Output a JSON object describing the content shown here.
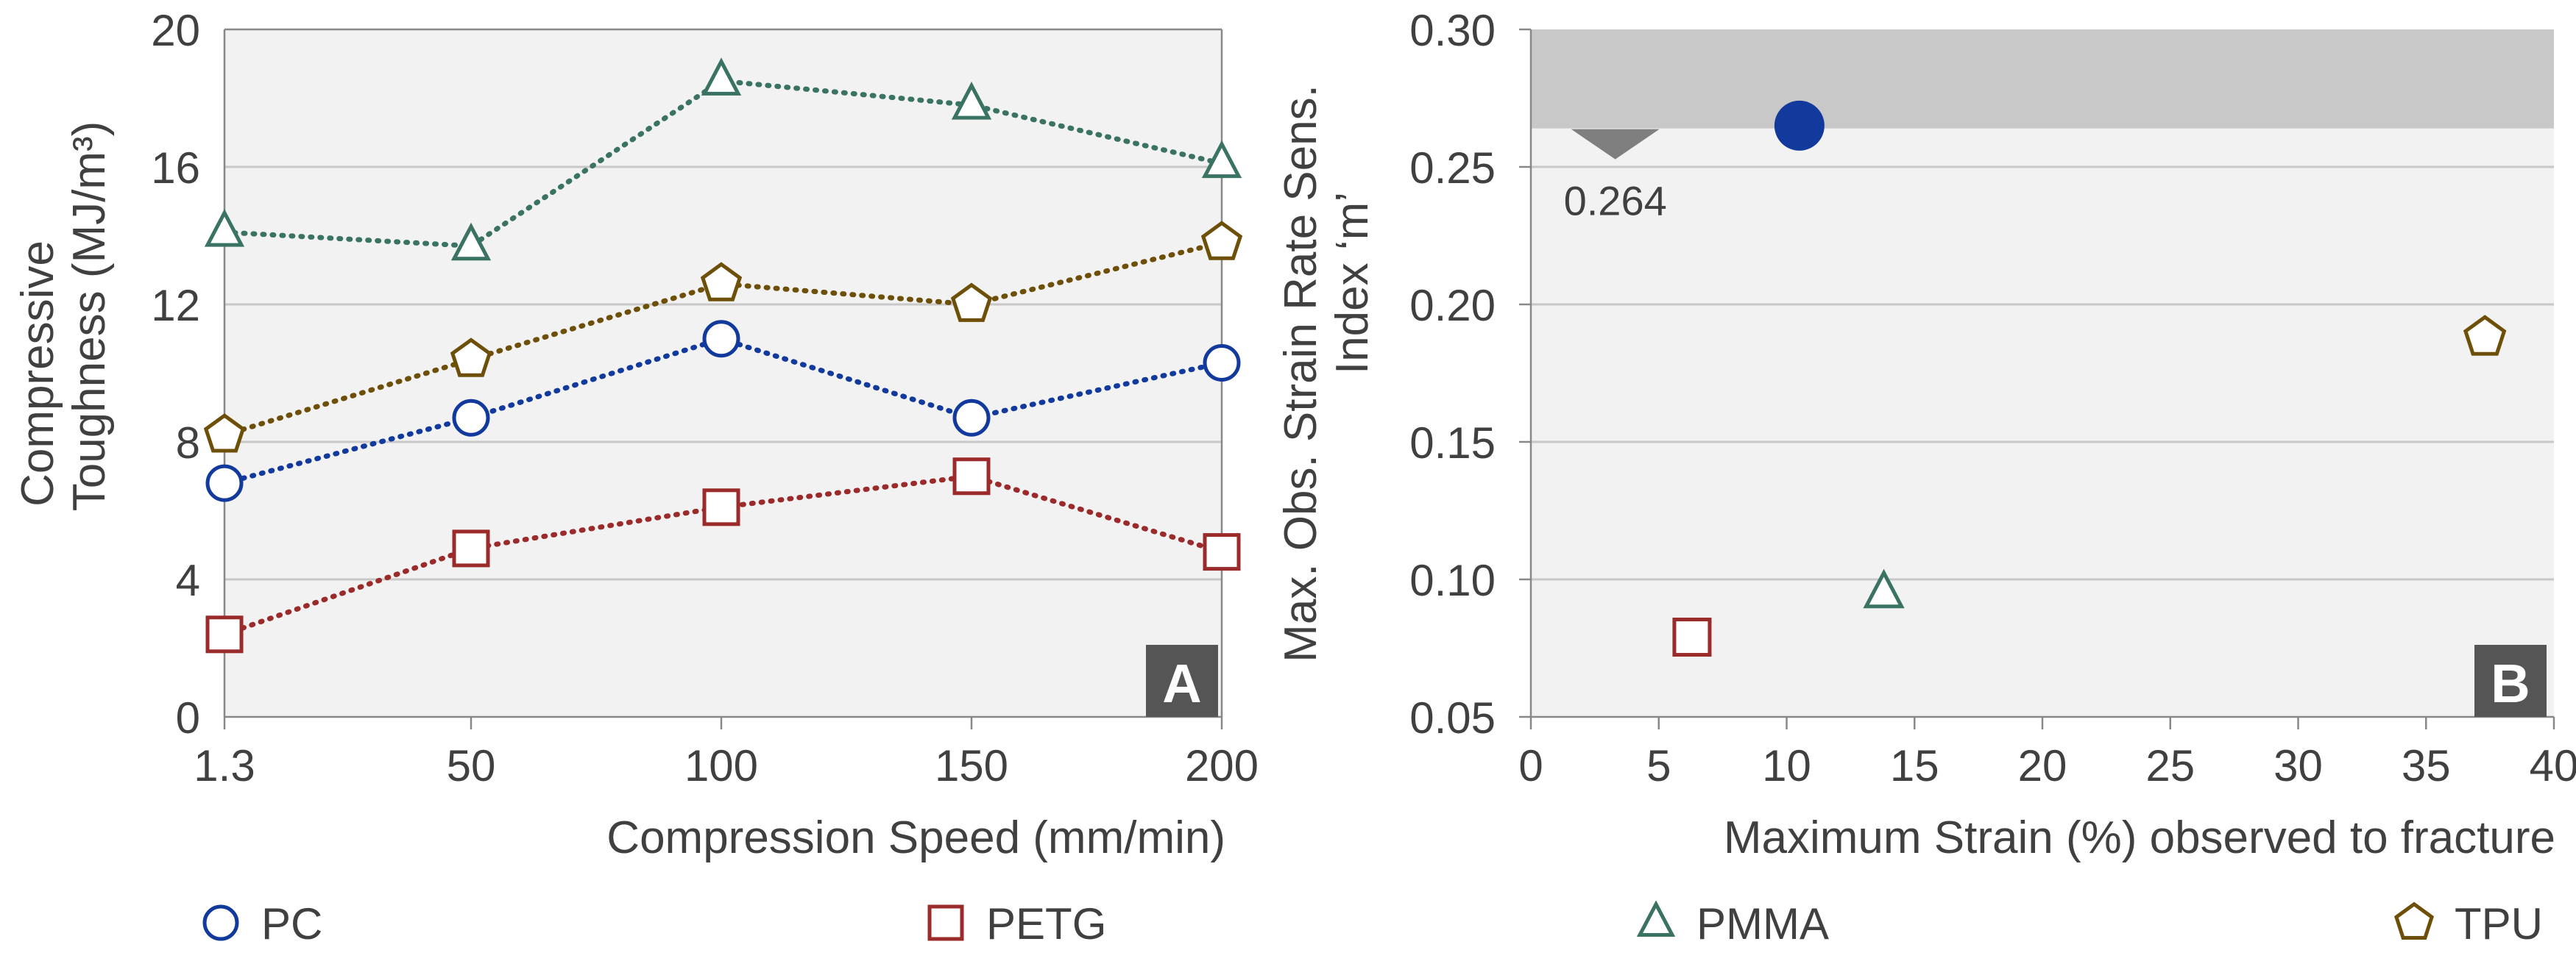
{
  "colors": {
    "PC": "#123a9c",
    "PETG": "#9b2a2a",
    "PMMA": "#3a7263",
    "TPU": "#6d4f08",
    "plot_bg": "#f2f2f2",
    "grid": "#c8c8c8",
    "shade": "#c8c8c8",
    "text": "#404040",
    "badge": "#555555"
  },
  "chart_data": [
    {
      "type": "line",
      "panel_label": "A",
      "xlabel": "Compression Speed (mm/min)",
      "ylabel_line1": "Compressive",
      "ylabel_line2": "Toughness (MJ/m³)",
      "categories": [
        "1.3",
        "50",
        "100",
        "150",
        "200"
      ],
      "yticks": [
        "0",
        "4",
        "8",
        "12",
        "16",
        "20"
      ],
      "ylim": [
        0,
        20
      ],
      "grid": true,
      "series": [
        {
          "name": "PMMA",
          "marker": "triangle",
          "values": [
            14.1,
            13.7,
            18.5,
            17.8,
            16.1
          ]
        },
        {
          "name": "TPU",
          "marker": "pentagon",
          "values": [
            8.2,
            10.4,
            12.6,
            12.0,
            13.8
          ]
        },
        {
          "name": "PC",
          "marker": "circle",
          "values": [
            6.8,
            8.7,
            11.0,
            8.7,
            10.3
          ]
        },
        {
          "name": "PETG",
          "marker": "square",
          "values": [
            2.4,
            4.9,
            6.1,
            7.0,
            4.8
          ]
        }
      ]
    },
    {
      "type": "scatter",
      "panel_label": "B",
      "xlabel": "Maximum Strain (%) observed to fracture",
      "ylabel_line1": "Max. Obs. Strain Rate Sens.",
      "ylabel_line2": "Index ‘m’",
      "xticks": [
        "0",
        "5",
        "10",
        "15",
        "20",
        "25",
        "30",
        "35",
        "40"
      ],
      "yticks": [
        "0.05",
        "0.10",
        "0.15",
        "0.20",
        "0.25",
        "0.30"
      ],
      "xlim": [
        0,
        40
      ],
      "ylim": [
        0.05,
        0.3
      ],
      "grid": true,
      "threshold": {
        "value": 0.264,
        "x": 3.3,
        "label": "0.264"
      },
      "highlight_point": {
        "x": 10.5,
        "y": 0.265
      },
      "series": [
        {
          "name": "PETG",
          "marker": "square",
          "x": 6.3,
          "y": 0.079
        },
        {
          "name": "PMMA",
          "marker": "triangle",
          "x": 13.8,
          "y": 0.095
        },
        {
          "name": "TPU",
          "marker": "pentagon",
          "x": 37.3,
          "y": 0.188
        }
      ]
    }
  ],
  "legend": [
    {
      "name": "PC",
      "marker": "circle"
    },
    {
      "name": "PETG",
      "marker": "square"
    },
    {
      "name": "PMMA",
      "marker": "triangle"
    },
    {
      "name": "TPU",
      "marker": "pentagon"
    }
  ]
}
